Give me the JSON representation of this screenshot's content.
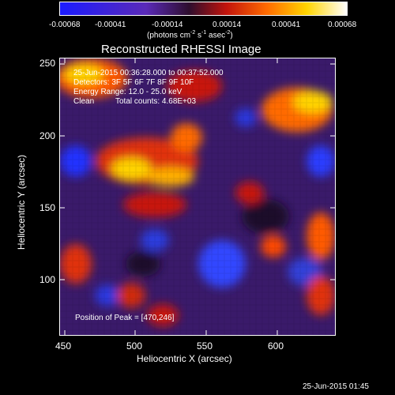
{
  "colorbar": {
    "ticks": [
      "-0.00068",
      "-0.00041",
      "-0.00014",
      "0.00014",
      "0.00041",
      "0.00068"
    ],
    "units_main": "(photons cm",
    "units_sup1": "-2",
    "units_mid": " s",
    "units_sup2": "-1",
    "units_mid2": " asec",
    "units_sup3": "-2",
    "units_end": ")",
    "colors": [
      "#1b1bff",
      "#5a2ab8",
      "#2e0e2e",
      "#c2140c",
      "#ff6a00",
      "#ffd400",
      "#ffffff"
    ]
  },
  "plot": {
    "title": "Reconstructed RHESSI Image",
    "info_lines": [
      "25-Jun-2015 00:36:28.000 to 00:37:52.000",
      "Detectors: 3F 5F 6F 7F 8F 9F 10F",
      "Energy Range: 12.0 - 25.0 keV"
    ],
    "clean_label": "Clean",
    "total_counts": "Total counts: 4.68E+03",
    "peak_label": "Position of Peak = [470,246]",
    "xlabel": "Heliocentric X (arcsec)",
    "ylabel": "Heliocentric Y (arcsec)",
    "xticks": [
      "450",
      "500",
      "550",
      "600"
    ],
    "yticks": [
      "250",
      "200",
      "150",
      "100"
    ],
    "timestamp": "25-Jun-2015 01:45"
  }
}
